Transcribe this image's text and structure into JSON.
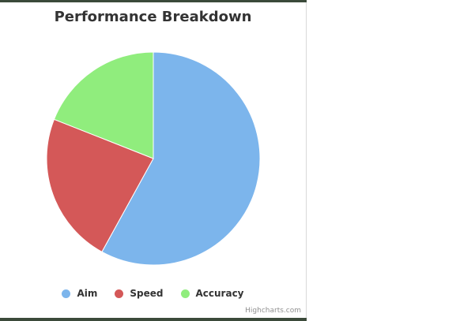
{
  "chart_data": {
    "type": "pie",
    "title": "Performance Breakdown",
    "legend_position": "bottom-center",
    "slices": [
      {
        "name": "Aim",
        "value": 58,
        "color": "#7cb5ec"
      },
      {
        "name": "Speed",
        "value": 23,
        "color": "#d45858"
      },
      {
        "name": "Accuracy",
        "value": 19,
        "color": "#90ed7d"
      }
    ]
  },
  "credits": "Highcharts.com"
}
